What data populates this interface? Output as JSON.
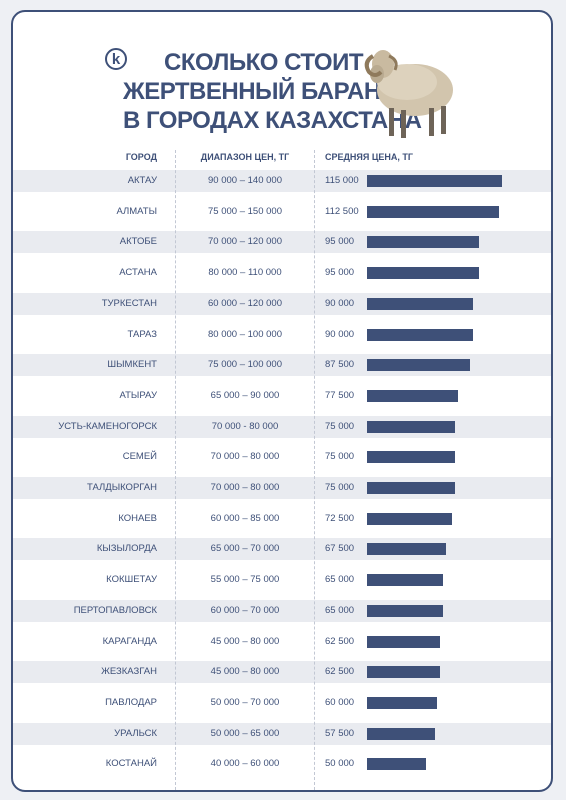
{
  "brand": {
    "logo_letter": "k"
  },
  "title_lines": [
    "Сколько стоит",
    "жертвенный баран",
    "в городах Казахстана"
  ],
  "colors": {
    "accent": "#3e5078",
    "row_shade": "#e9ebf0"
  },
  "chart_data": {
    "type": "bar",
    "orientation": "horizontal",
    "columns": {
      "city": "Город",
      "range": "Диапазон цен, тг",
      "avg": "Средняя цена, тг"
    },
    "categories": [
      "Актау",
      "Алматы",
      "Актобе",
      "Астана",
      "Туркестан",
      "Тараз",
      "Шымкент",
      "Атырау",
      "Усть-Каменогорск",
      "Семей",
      "Талдыкорган",
      "Конаев",
      "Кызылорда",
      "Кокшетау",
      "Пертопавловск",
      "Караганда",
      "Жезказган",
      "Павлодар",
      "Уральск",
      "Костанай"
    ],
    "ranges": [
      "90 000 – 140 000",
      "75 000 – 150 000",
      "70 000 – 120 000",
      "80 000 – 110 000",
      "60 000 – 120 000",
      "80 000 – 100 000",
      "75 000 – 100 000",
      "65 000 – 90 000",
      "70 000  - 80 000",
      "70 000 – 80 000",
      "70 000 – 80 000",
      "60 000 – 85 000",
      "65 000 – 70 000",
      "55 000 – 75 000",
      "60 000 – 70 000",
      "45 000 – 80 000",
      "45 000 – 80 000",
      "50 000 – 70 000",
      "50 000 – 65 000",
      "40 000 – 60 000"
    ],
    "value_labels": [
      "115 000",
      "112 500",
      "95 000",
      "95 000",
      "90 000",
      "90 000",
      "87 500",
      "77 500",
      "75 000",
      "75 000",
      "75 000",
      "72 500",
      "67 500",
      "65 000",
      "65 000",
      "62 500",
      "62 500",
      "60 000",
      "57 500",
      "50 000"
    ],
    "values": [
      115000,
      112500,
      95000,
      95000,
      90000,
      90000,
      87500,
      77500,
      75000,
      75000,
      75000,
      72500,
      67500,
      65000,
      65000,
      62500,
      62500,
      60000,
      57500,
      50000
    ],
    "xlim": [
      0,
      115000
    ]
  }
}
